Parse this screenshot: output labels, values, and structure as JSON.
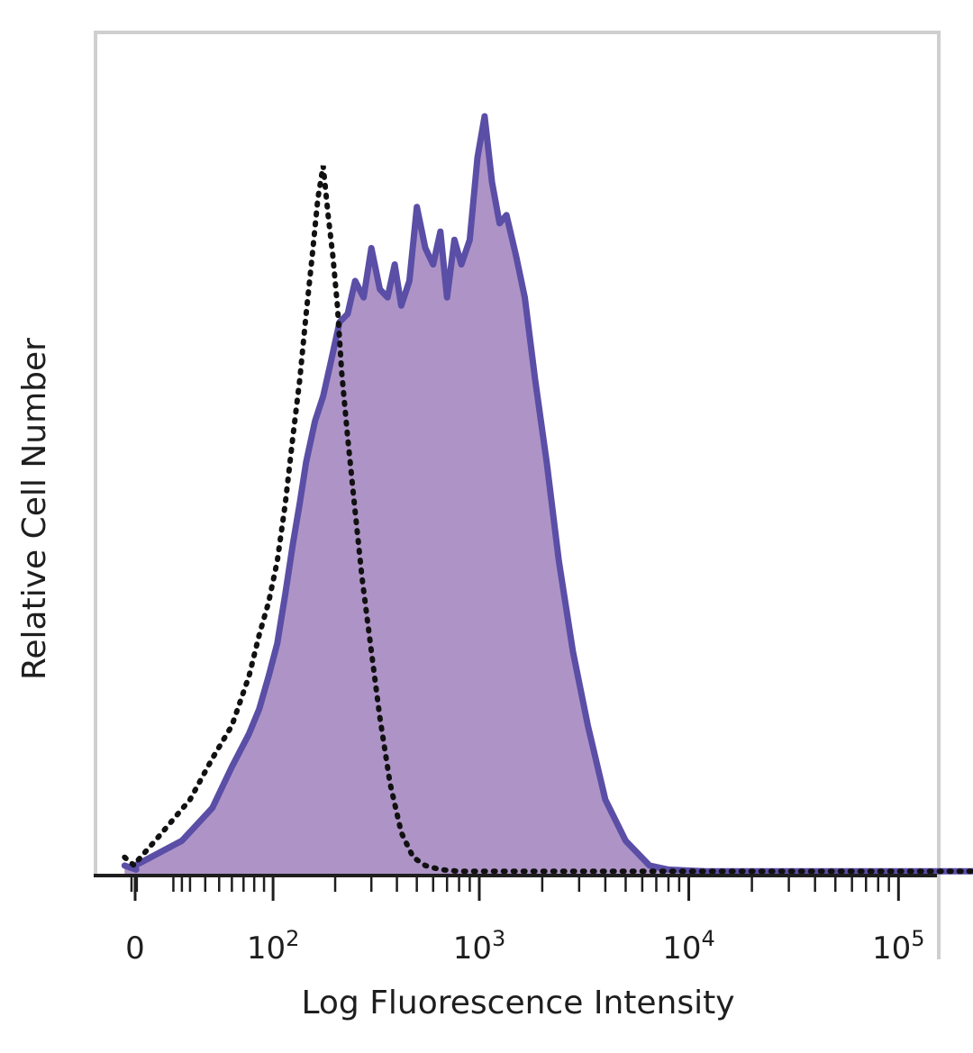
{
  "chart_data": {
    "type": "area",
    "title": "",
    "xlabel": "Log Fluorescence Intensity",
    "ylabel": "Relative Cell Number",
    "x_scale": "biexponential",
    "x_ticks": [
      {
        "value": 0,
        "base": "0",
        "exp": ""
      },
      {
        "value": 100,
        "base": "10",
        "exp": "2"
      },
      {
        "value": 1000,
        "base": "10",
        "exp": "3"
      },
      {
        "value": 10000,
        "base": "10",
        "exp": "4"
      },
      {
        "value": 100000,
        "base": "10",
        "exp": "5"
      }
    ],
    "xlim": [
      -70,
      250000
    ],
    "ylim": [
      0,
      100
    ],
    "grid": false,
    "legend": "none",
    "colors": {
      "stained_line": "#5a4ea6",
      "stained_fill": "#ae94c6",
      "control_line": "#111111",
      "axis": "#1e1e1e",
      "frame": "#c8c8c8"
    },
    "series": [
      {
        "style": "filled-solid",
        "x": [
          -70,
          -30,
          0,
          25,
          45,
          60,
          75,
          85,
          95,
          105,
          115,
          125,
          135,
          145,
          160,
          175,
          190,
          210,
          230,
          250,
          275,
          300,
          330,
          360,
          390,
          420,
          460,
          500,
          550,
          600,
          650,
          700,
          760,
          820,
          900,
          980,
          1060,
          1150,
          1250,
          1350,
          1500,
          1650,
          1850,
          2100,
          2400,
          2800,
          3300,
          4000,
          5000,
          6500,
          8000,
          12000,
          30000,
          100000,
          250000
        ],
        "y": [
          1,
          0.5,
          1,
          4,
          8,
          13,
          17,
          20,
          24,
          28,
          34,
          40,
          45,
          50,
          55,
          58,
          62,
          67,
          68,
          72,
          70,
          76,
          71,
          70,
          74,
          69,
          72,
          81,
          76,
          74,
          78,
          70,
          77,
          74,
          77,
          87,
          92,
          84,
          79,
          80,
          75,
          70,
          60,
          50,
          38,
          27,
          18,
          9,
          4,
          1,
          0.5,
          0.3,
          0.3,
          0.3,
          0.3
        ]
      },
      {
        "style": "dotted",
        "x": [
          -70,
          -40,
          -10,
          10,
          30,
          45,
          60,
          75,
          85,
          95,
          105,
          115,
          125,
          135,
          145,
          155,
          165,
          175,
          185,
          195,
          205,
          215,
          230,
          250,
          270,
          300,
          330,
          370,
          420,
          480,
          550,
          650,
          800,
          1000,
          2000,
          10000,
          250000
        ],
        "y": [
          2,
          1,
          1.5,
          4,
          9,
          14,
          18,
          24,
          29,
          33,
          38,
          45,
          53,
          60,
          68,
          75,
          82,
          86,
          80,
          75,
          69,
          61,
          53,
          44,
          36,
          27,
          19,
          11,
          5,
          2,
          1,
          0.5,
          0.3,
          0.3,
          0.3,
          0.3,
          0.3
        ]
      }
    ]
  }
}
